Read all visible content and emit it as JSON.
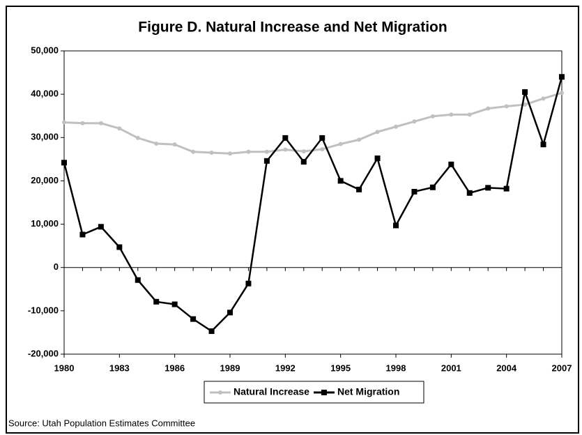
{
  "chart_data": {
    "type": "line",
    "title": "Figure D. Natural Increase and Net Migration",
    "source": "Source: Utah Population Estimates Committee",
    "x": [
      1980,
      1981,
      1982,
      1983,
      1984,
      1985,
      1986,
      1987,
      1988,
      1989,
      1990,
      1991,
      1992,
      1993,
      1994,
      1995,
      1996,
      1997,
      1998,
      1999,
      2000,
      2001,
      2002,
      2003,
      2004,
      2005,
      2006,
      2007
    ],
    "series": [
      {
        "name": "Natural Increase",
        "color": "#c0c0c0",
        "marker": "circle",
        "values": [
          33500,
          33300,
          33300,
          32100,
          29900,
          28600,
          28400,
          26700,
          26500,
          26300,
          26700,
          26700,
          27200,
          26800,
          27300,
          28500,
          29500,
          31300,
          32500,
          33700,
          34900,
          35300,
          35300,
          36700,
          37200,
          37600,
          39000,
          40300
        ]
      },
      {
        "name": "Net Migration",
        "color": "#000000",
        "marker": "square",
        "values": [
          24200,
          7600,
          9400,
          4700,
          -2900,
          -7900,
          -8500,
          -11900,
          -14700,
          -10400,
          -3700,
          24600,
          29900,
          24400,
          29900,
          20000,
          18000,
          25200,
          9700,
          17500,
          18500,
          23800,
          17200,
          18400,
          18200,
          40500,
          28400,
          44000
        ]
      }
    ],
    "xlim": [
      1980,
      2007
    ],
    "xticks": [
      1980,
      1983,
      1986,
      1989,
      1992,
      1995,
      1998,
      2001,
      2004,
      2007
    ],
    "ylim": [
      -20000,
      50000
    ],
    "yticks": [
      {
        "value": -20000,
        "label": "-20,000"
      },
      {
        "value": -10000,
        "label": "-10,000"
      },
      0,
      {
        "value": 10000,
        "label": "10,000"
      },
      {
        "value": 20000,
        "label": "20,000"
      },
      {
        "value": 30000,
        "label": "30,000"
      },
      {
        "value": 40000,
        "label": "40,000"
      },
      {
        "value": 50000,
        "label": "50,000"
      }
    ],
    "legend": "bottom"
  }
}
